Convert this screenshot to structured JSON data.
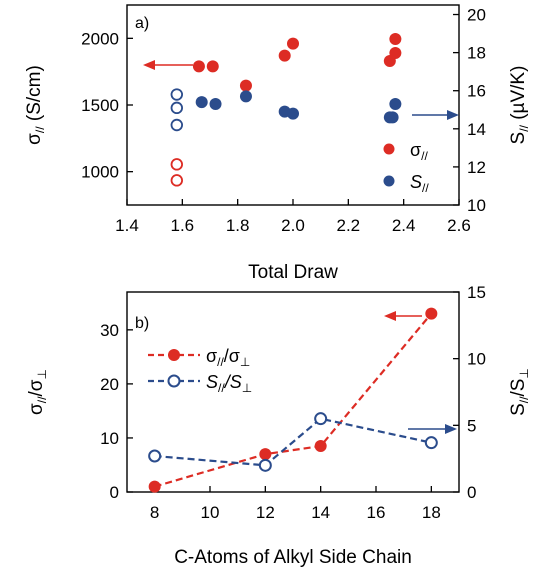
{
  "colors": {
    "red": "#dd2c24",
    "blue": "#2b4c8c",
    "axis": "#000000"
  },
  "chart_data": [
    {
      "type": "scatter",
      "panel_label": "a)",
      "xlabel": "Total Draw",
      "ylabel_left": "σ// (S/cm)",
      "ylabel_right": "S// (µV/K)",
      "xlim": [
        1.4,
        2.6
      ],
      "ylim_left": [
        750,
        2250
      ],
      "ylim_right": [
        10,
        20.5
      ],
      "xticks": [
        "1.4",
        "1.6",
        "1.8",
        "2.0",
        "2.2",
        "2.4",
        "2.6"
      ],
      "yticks_left": [
        "1000",
        "1500",
        "2000"
      ],
      "yticks_right": [
        "10",
        "12",
        "14",
        "16",
        "18",
        "20"
      ],
      "legend": {
        "position": "lower-right",
        "entries": [
          "σ//",
          "S//"
        ]
      },
      "series": [
        {
          "name": "σ//",
          "axis": "left",
          "color": "red",
          "marker": "circle",
          "points": [
            {
              "x": 1.66,
              "y": 1790,
              "filled": true
            },
            {
              "x": 1.71,
              "y": 1790,
              "filled": true
            },
            {
              "x": 1.83,
              "y": 1645,
              "filled": true
            },
            {
              "x": 1.97,
              "y": 1870,
              "filled": true
            },
            {
              "x": 2.0,
              "y": 1960,
              "filled": true
            },
            {
              "x": 2.35,
              "y": 1830,
              "filled": true
            },
            {
              "x": 2.37,
              "y": 1890,
              "filled": true
            },
            {
              "x": 2.37,
              "y": 1995,
              "filled": true
            },
            {
              "x": 1.58,
              "y": 1055,
              "filled": false
            },
            {
              "x": 1.58,
              "y": 935,
              "filled": false
            }
          ]
        },
        {
          "name": "S//",
          "axis": "right",
          "color": "blue",
          "marker": "circle",
          "points": [
            {
              "x": 1.67,
              "y": 15.4,
              "filled": true
            },
            {
              "x": 1.72,
              "y": 15.3,
              "filled": true
            },
            {
              "x": 1.83,
              "y": 15.7,
              "filled": true
            },
            {
              "x": 1.97,
              "y": 14.9,
              "filled": true
            },
            {
              "x": 2.0,
              "y": 14.8,
              "filled": true
            },
            {
              "x": 2.35,
              "y": 14.6,
              "filled": true
            },
            {
              "x": 2.36,
              "y": 14.6,
              "filled": true
            },
            {
              "x": 2.37,
              "y": 15.3,
              "filled": true
            },
            {
              "x": 1.58,
              "y": 15.8,
              "filled": false
            },
            {
              "x": 1.58,
              "y": 15.1,
              "filled": false
            },
            {
              "x": 1.58,
              "y": 14.2,
              "filled": false
            }
          ]
        }
      ],
      "arrows": [
        {
          "series": "σ//",
          "direction": "left"
        },
        {
          "series": "S//",
          "direction": "right"
        }
      ]
    },
    {
      "type": "line",
      "panel_label": "b)",
      "xlabel": "C-Atoms of Alkyl Side Chain",
      "ylabel_left": "σ///σ⊥",
      "ylabel_right": "S///S⊥",
      "xlim": [
        7,
        19
      ],
      "ylim_left": [
        0,
        37
      ],
      "ylim_right": [
        0,
        15
      ],
      "xticks": [
        "8",
        "10",
        "12",
        "14",
        "16",
        "18"
      ],
      "yticks_left": [
        "0",
        "10",
        "20",
        "30"
      ],
      "yticks_right": [
        "0",
        "5",
        "10",
        "15"
      ],
      "legend": {
        "position": "top-left",
        "entries": [
          "σ///σ⊥",
          "S///S⊥"
        ]
      },
      "x": [
        8,
        12,
        14,
        18
      ],
      "series": [
        {
          "name": "σ///σ⊥",
          "axis": "left",
          "color": "red",
          "marker": "filled-circle",
          "line": "dashed",
          "values": [
            1,
            7,
            8.5,
            33
          ]
        },
        {
          "name": "S///S⊥",
          "axis": "right",
          "color": "blue",
          "marker": "open-circle",
          "line": "dashed",
          "values": [
            2.7,
            2.0,
            5.5,
            3.7
          ]
        }
      ],
      "arrows": [
        {
          "series": "σ///σ⊥",
          "direction": "left"
        },
        {
          "series": "S///S⊥",
          "direction": "right"
        }
      ]
    }
  ]
}
